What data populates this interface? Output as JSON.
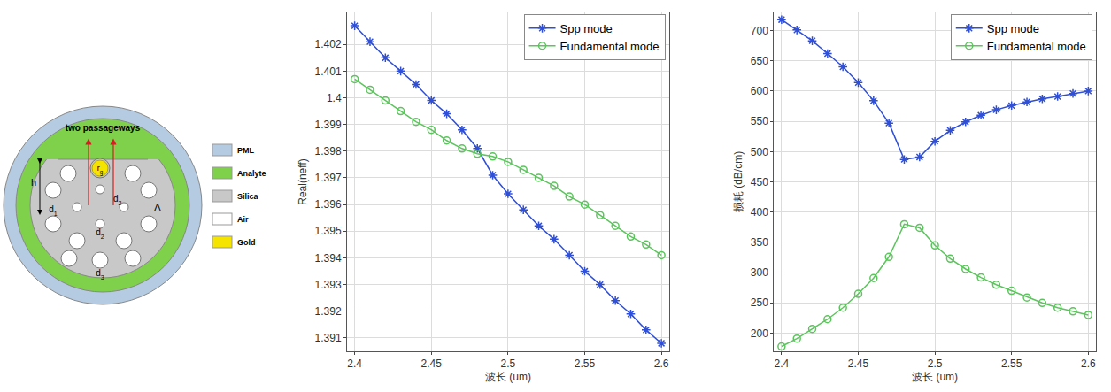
{
  "diagram": {
    "passageways": "two passageways",
    "h": "h",
    "gold_radius": "rg",
    "d1": "d1",
    "d2": "d2",
    "d3": "d3",
    "pitch": "Λ",
    "legend": [
      {
        "label": "PML",
        "color": "#b4cbe2"
      },
      {
        "label": "Analyte",
        "color": "#7fd04a"
      },
      {
        "label": "Silica",
        "color": "#c8c8c8"
      },
      {
        "label": "Air",
        "color": "#ffffff"
      },
      {
        "label": "Gold",
        "color": "#f5e400"
      }
    ]
  },
  "chart_data": [
    {
      "type": "line",
      "xlabel": "波长 (um)",
      "ylabel": "Real(neff)",
      "x": [
        2.4,
        2.41,
        2.42,
        2.43,
        2.44,
        2.45,
        2.46,
        2.47,
        2.48,
        2.49,
        2.5,
        2.51,
        2.52,
        2.53,
        2.54,
        2.55,
        2.56,
        2.57,
        2.58,
        2.59,
        2.6
      ],
      "series": [
        {
          "name": "Spp mode",
          "color": "#2f4fd6",
          "marker": "asterisk",
          "values": [
            1.4027,
            1.4021,
            1.4015,
            1.401,
            1.4005,
            1.3999,
            1.3994,
            1.3988,
            1.3981,
            1.3971,
            1.3964,
            1.3958,
            1.3952,
            1.3947,
            1.3941,
            1.3935,
            1.393,
            1.3924,
            1.3919,
            1.3913,
            1.3908
          ]
        },
        {
          "name": "Fundamental mode",
          "color": "#5cc45c",
          "marker": "circle-open",
          "values": [
            1.4007,
            1.4003,
            1.3999,
            1.3995,
            1.3991,
            1.3988,
            1.3984,
            1.3981,
            1.3979,
            1.3978,
            1.3976,
            1.3973,
            1.397,
            1.3967,
            1.3963,
            1.396,
            1.3956,
            1.3952,
            1.3948,
            1.3945,
            1.3941
          ]
        }
      ],
      "xlim": [
        2.395,
        2.605
      ],
      "ylim": [
        1.3905,
        1.4032
      ],
      "xticks": [
        2.4,
        2.45,
        2.5,
        2.55,
        2.6
      ],
      "yticks": [
        1.391,
        1.392,
        1.393,
        1.394,
        1.395,
        1.396,
        1.397,
        1.398,
        1.399,
        1.4,
        1.401,
        1.402
      ],
      "grid": true,
      "legend": "top right"
    },
    {
      "type": "line",
      "xlabel": "波长 (um)",
      "ylabel": "损耗 (dB/cm)",
      "x": [
        2.4,
        2.41,
        2.42,
        2.43,
        2.44,
        2.45,
        2.46,
        2.47,
        2.48,
        2.49,
        2.5,
        2.51,
        2.52,
        2.53,
        2.54,
        2.55,
        2.56,
        2.57,
        2.58,
        2.59,
        2.6
      ],
      "series": [
        {
          "name": "Spp mode",
          "color": "#2f4fd6",
          "marker": "asterisk",
          "values": [
            718,
            701,
            683,
            662,
            640,
            614,
            584,
            547,
            487,
            491,
            517,
            535,
            549,
            560,
            569,
            576,
            582,
            587,
            591,
            596,
            600
          ]
        },
        {
          "name": "Fundamental mode",
          "color": "#5cc45c",
          "marker": "circle-open",
          "values": [
            178,
            191,
            207,
            223,
            242,
            265,
            291,
            326,
            380,
            374,
            345,
            323,
            306,
            292,
            280,
            270,
            259,
            250,
            242,
            236,
            230
          ]
        }
      ],
      "xlim": [
        2.395,
        2.605
      ],
      "ylim": [
        170,
        730
      ],
      "xticks": [
        2.4,
        2.45,
        2.5,
        2.55,
        2.6
      ],
      "yticks": [
        200,
        250,
        300,
        350,
        400,
        450,
        500,
        550,
        600,
        650,
        700
      ],
      "grid": true,
      "legend": "top right"
    }
  ]
}
